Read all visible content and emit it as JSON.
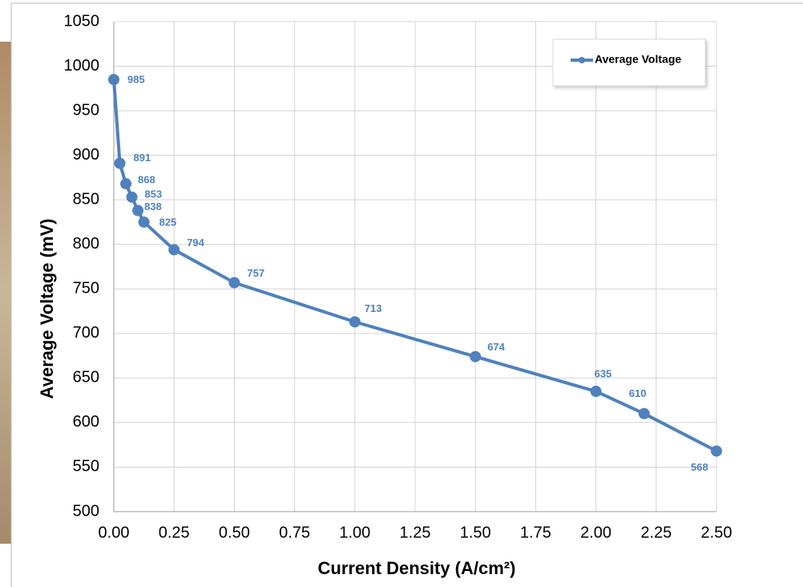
{
  "chart_data": {
    "type": "line",
    "x_label": "Current Density (A/cm²)",
    "y_label": "Average Voltage (mV)",
    "x": [
      0,
      0.025,
      0.05,
      0.075,
      0.1,
      0.125,
      0.25,
      0.5,
      1.0,
      1.5,
      2.0,
      2.2,
      2.5
    ],
    "series": [
      {
        "name": "Average Voltage",
        "color": "#4f81bd",
        "values": [
          985,
          891,
          868,
          853,
          838,
          825,
          794,
          757,
          713,
          674,
          635,
          610,
          568
        ]
      }
    ],
    "xlim": [
      0,
      2.5
    ],
    "xticks": [
      {
        "value": 0,
        "label": "0.00"
      },
      {
        "value": 0.25,
        "label": "0.25"
      },
      {
        "value": 0.5,
        "label": "0.50"
      },
      {
        "value": 0.75,
        "label": "0.75"
      },
      {
        "value": 1,
        "label": "1.00"
      },
      {
        "value": 1.25,
        "label": "1.25"
      },
      {
        "value": 1.5,
        "label": "1.50"
      },
      {
        "value": 1.75,
        "label": "1.75"
      },
      {
        "value": 2,
        "label": "2.00"
      },
      {
        "value": 2.25,
        "label": "2.25"
      },
      {
        "value": 2.5,
        "label": "2.50"
      }
    ],
    "ylim": [
      500,
      1050
    ],
    "yticks": [
      500,
      550,
      600,
      650,
      700,
      750,
      800,
      850,
      900,
      950,
      1000,
      1050
    ],
    "grid": true,
    "legend": "upper right"
  }
}
